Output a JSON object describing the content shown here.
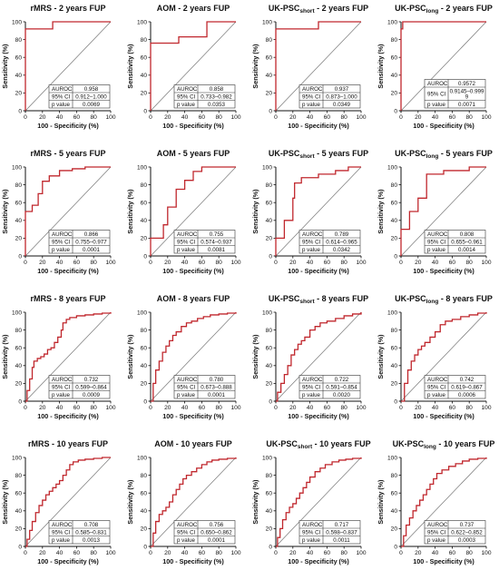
{
  "chart_data": [
    {
      "type": "line",
      "title": "rMRS - 2 years FUP",
      "xlabel": "100 - Specificity (%)",
      "ylabel": "Sensitivity (%)",
      "xlim": [
        0,
        100
      ],
      "ylim": [
        0,
        100
      ],
      "ticks": [
        "0",
        "20",
        "40",
        "60",
        "80",
        "100"
      ],
      "reference_line": true,
      "series": [
        {
          "x": [
            0,
            0,
            0,
            32,
            32,
            100,
            100
          ],
          "y": [
            0,
            60,
            92,
            92,
            100,
            100,
            100
          ]
        }
      ],
      "stats": {
        "labels": [
          "AUROC",
          "95% CI",
          "p value"
        ],
        "values": [
          "0.958",
          "0.912–1.000",
          "0.0069"
        ]
      }
    },
    {
      "type": "line",
      "title": "AOM - 2 years FUP",
      "xlabel": "100 - Specificity (%)",
      "ylabel": "Sensitivity (%)",
      "xlim": [
        0,
        100
      ],
      "ylim": [
        0,
        100
      ],
      "ticks": [
        "0",
        "20",
        "40",
        "60",
        "80",
        "100"
      ],
      "reference_line": true,
      "series": [
        {
          "x": [
            0,
            0,
            33,
            33,
            66,
            66,
            100
          ],
          "y": [
            0,
            76,
            76,
            83,
            83,
            100,
            100
          ]
        }
      ],
      "stats": {
        "labels": [
          "AUROC",
          "95% CI",
          "p value"
        ],
        "values": [
          "0.858",
          "0.733–0.982",
          "0.0353"
        ]
      }
    },
    {
      "type": "line",
      "title": "UK-PSCshort - 2 years FUP",
      "title_main": "UK-PSC",
      "title_sub": "short",
      "title_rest": " - 2 years FUP",
      "xlabel": "100 - Specificity (%)",
      "ylabel": "Sensitivity (%)",
      "xlim": [
        0,
        100
      ],
      "ylim": [
        0,
        100
      ],
      "ticks": [
        "0",
        "20",
        "40",
        "60",
        "80",
        "100"
      ],
      "reference_line": true,
      "series": [
        {
          "x": [
            0,
            0,
            0,
            0,
            50,
            50,
            100
          ],
          "y": [
            0,
            50,
            80,
            92,
            92,
            100,
            100
          ]
        }
      ],
      "stats": {
        "labels": [
          "AUROC",
          "95% CI",
          "p value"
        ],
        "values": [
          "0.937",
          "0.873–1.000",
          "0.0349"
        ]
      }
    },
    {
      "type": "line",
      "title": "UK-PSClong - 2 years FUP",
      "title_main": "UK-PSC",
      "title_sub": "long",
      "title_rest": " - 2 years FUP",
      "xlabel": "100 - Specificity (%)",
      "ylabel": "Sensitivity (%)",
      "xlim": [
        0,
        100
      ],
      "ylim": [
        0,
        100
      ],
      "ticks": [
        "0",
        "20",
        "40",
        "60",
        "80",
        "100"
      ],
      "reference_line": true,
      "series": [
        {
          "x": [
            0,
            0,
            0,
            0,
            2,
            2,
            100
          ],
          "y": [
            0,
            40,
            70,
            92,
            92,
            100,
            100
          ]
        }
      ],
      "stats": {
        "labels": [
          "AUROC",
          "95% CI",
          "p value"
        ],
        "values": [
          "0.9572",
          "0.9145–0.999",
          "0.0071"
        ],
        "ci_extra": "9"
      }
    },
    {
      "type": "line",
      "title": "rMRS - 5 years FUP",
      "xlabel": "100 - Specificity (%)",
      "ylabel": "Sensitivity (%)",
      "xlim": [
        0,
        100
      ],
      "ylim": [
        0,
        100
      ],
      "ticks": [
        "0",
        "20",
        "40",
        "60",
        "80",
        "100"
      ],
      "reference_line": true,
      "series": [
        {
          "x": [
            0,
            0,
            8,
            8,
            15,
            15,
            20,
            20,
            28,
            28,
            40,
            40,
            55,
            55,
            70,
            70,
            100
          ],
          "y": [
            0,
            50,
            50,
            57,
            57,
            70,
            70,
            84,
            84,
            90,
            90,
            96,
            96,
            98,
            98,
            100,
            100
          ]
        }
      ],
      "stats": {
        "labels": [
          "AUROC",
          "95% CI",
          "p value"
        ],
        "values": [
          "0.866",
          "0.755–0.977",
          "0.0001"
        ]
      }
    },
    {
      "type": "line",
      "title": "AOM - 5 years FUP",
      "xlabel": "100 - Specificity (%)",
      "ylabel": "Sensitivity (%)",
      "xlim": [
        0,
        100
      ],
      "ylim": [
        0,
        100
      ],
      "ticks": [
        "0",
        "20",
        "40",
        "60",
        "80",
        "100"
      ],
      "reference_line": true,
      "series": [
        {
          "x": [
            0,
            0,
            15,
            15,
            20,
            20,
            30,
            30,
            40,
            40,
            50,
            50,
            60,
            60,
            100
          ],
          "y": [
            0,
            20,
            20,
            35,
            35,
            55,
            55,
            75,
            75,
            85,
            85,
            95,
            95,
            100,
            100
          ]
        }
      ],
      "stats": {
        "labels": [
          "AUROC",
          "95% CI",
          "p value"
        ],
        "values": [
          "0.755",
          "0.574–0.937",
          "0.0081"
        ]
      }
    },
    {
      "type": "line",
      "title": "UK-PSCshort - 5 years FUP",
      "title_main": "UK-PSC",
      "title_sub": "short",
      "title_rest": " - 5 years FUP",
      "xlabel": "100 - Specificity (%)",
      "ylabel": "Sensitivity (%)",
      "xlim": [
        0,
        100
      ],
      "ylim": [
        0,
        100
      ],
      "ticks": [
        "0",
        "20",
        "40",
        "60",
        "80",
        "100"
      ],
      "reference_line": true,
      "series": [
        {
          "x": [
            0,
            0,
            10,
            10,
            20,
            20,
            22,
            22,
            30,
            30,
            50,
            50,
            70,
            70,
            85,
            85,
            100
          ],
          "y": [
            0,
            20,
            20,
            40,
            40,
            65,
            65,
            82,
            82,
            88,
            88,
            92,
            92,
            96,
            96,
            100,
            100
          ]
        }
      ],
      "stats": {
        "labels": [
          "AUROC",
          "95% CI",
          "p value"
        ],
        "values": [
          "0.789",
          "0.614–0.965",
          "0.0342"
        ]
      }
    },
    {
      "type": "line",
      "title": "UK-PSClong - 5 years FUP",
      "title_main": "UK-PSC",
      "title_sub": "long",
      "title_rest": " - 5 years FUP",
      "xlabel": "100 - Specificity (%)",
      "ylabel": "Sensitivity (%)",
      "xlim": [
        0,
        100
      ],
      "ylim": [
        0,
        100
      ],
      "ticks": [
        "0",
        "20",
        "40",
        "60",
        "80",
        "100"
      ],
      "reference_line": true,
      "series": [
        {
          "x": [
            0,
            0,
            10,
            10,
            20,
            20,
            30,
            30,
            50,
            50,
            80,
            80,
            100
          ],
          "y": [
            0,
            30,
            30,
            50,
            50,
            65,
            65,
            92,
            92,
            96,
            96,
            100,
            100
          ]
        }
      ],
      "stats": {
        "labels": [
          "AUROC",
          "95% CI",
          "p value"
        ],
        "values": [
          "0.808",
          "0.655–0.961",
          "0.0014"
        ]
      }
    },
    {
      "type": "line",
      "title": "rMRS - 8 years FUP",
      "xlabel": "100 - Specificity (%)",
      "ylabel": "Sensitivity (%)",
      "xlim": [
        0,
        100
      ],
      "ylim": [
        0,
        100
      ],
      "ticks": [
        "0",
        "20",
        "40",
        "60",
        "80",
        "100"
      ],
      "reference_line": true,
      "series": [
        {
          "x": [
            0,
            2,
            5,
            8,
            10,
            14,
            18,
            22,
            26,
            30,
            34,
            38,
            42,
            44,
            48,
            52,
            60,
            70,
            80,
            90,
            100
          ],
          "y": [
            0,
            12,
            25,
            38,
            45,
            48,
            50,
            53,
            58,
            60,
            66,
            72,
            80,
            88,
            92,
            94,
            96,
            97,
            98,
            99,
            100
          ]
        }
      ],
      "stats": {
        "labels": [
          "AUROC",
          "95% CI",
          "p value"
        ],
        "values": [
          "0.732",
          "0.599–0.864",
          "0.0009"
        ]
      }
    },
    {
      "type": "line",
      "title": "AOM - 8 years FUP",
      "xlabel": "100 - Specificity (%)",
      "ylabel": "Sensitivity (%)",
      "xlim": [
        0,
        100
      ],
      "ylim": [
        0,
        100
      ],
      "ticks": [
        "0",
        "20",
        "40",
        "60",
        "80",
        "100"
      ],
      "reference_line": true,
      "series": [
        {
          "x": [
            0,
            3,
            6,
            10,
            14,
            18,
            22,
            26,
            30,
            36,
            42,
            48,
            55,
            62,
            70,
            80,
            90,
            100
          ],
          "y": [
            0,
            20,
            35,
            45,
            55,
            62,
            68,
            74,
            78,
            84,
            88,
            90,
            93,
            95,
            97,
            98,
            99,
            100
          ]
        }
      ],
      "stats": {
        "labels": [
          "AUROC",
          "95% CI",
          "p value"
        ],
        "values": [
          "0.780",
          "0.673–0.888",
          "0.0001"
        ]
      }
    },
    {
      "type": "line",
      "title": "UK-PSCshort - 8 years FUP",
      "title_main": "UK-PSC",
      "title_sub": "short",
      "title_rest": " - 8 years FUP",
      "xlabel": "100 - Specificity (%)",
      "ylabel": "Sensitivity (%)",
      "xlim": [
        0,
        100
      ],
      "ylim": [
        0,
        100
      ],
      "ticks": [
        "0",
        "20",
        "40",
        "60",
        "80",
        "100"
      ],
      "reference_line": true,
      "series": [
        {
          "x": [
            0,
            2,
            6,
            10,
            14,
            18,
            22,
            26,
            30,
            34,
            40,
            46,
            52,
            60,
            70,
            80,
            90,
            100
          ],
          "y": [
            0,
            10,
            20,
            30,
            40,
            52,
            58,
            64,
            68,
            72,
            80,
            84,
            88,
            90,
            93,
            96,
            98,
            100
          ]
        }
      ],
      "stats": {
        "labels": [
          "AUROC",
          "95% CI",
          "p value"
        ],
        "values": [
          "0.722",
          "0.591–0.854",
          "0.0020"
        ]
      }
    },
    {
      "type": "line",
      "title": "UK-PSClong - 8 years FUP",
      "title_main": "UK-PSC",
      "title_sub": "long",
      "title_rest": " - 8 years FUP",
      "xlabel": "100 - Specificity (%)",
      "ylabel": "Sensitivity (%)",
      "xlim": [
        0,
        100
      ],
      "ylim": [
        0,
        100
      ],
      "ticks": [
        "0",
        "20",
        "40",
        "60",
        "80",
        "100"
      ],
      "reference_line": true,
      "series": [
        {
          "x": [
            0,
            4,
            8,
            12,
            16,
            20,
            24,
            28,
            34,
            40,
            46,
            52,
            60,
            70,
            80,
            90,
            100
          ],
          "y": [
            0,
            20,
            35,
            45,
            52,
            58,
            62,
            66,
            72,
            78,
            86,
            90,
            92,
            95,
            97,
            99,
            100
          ]
        }
      ],
      "stats": {
        "labels": [
          "AUROC",
          "95% CI",
          "p value"
        ],
        "values": [
          "0.742",
          "0.619–0.867",
          "0.0006"
        ]
      }
    },
    {
      "type": "line",
      "title": "rMRS - 10 years FUP",
      "xlabel": "100 - Specificity (%)",
      "ylabel": "Sensitivity (%)",
      "xlim": [
        0,
        100
      ],
      "ylim": [
        0,
        100
      ],
      "ticks": [
        "0",
        "20",
        "40",
        "60",
        "80",
        "100"
      ],
      "reference_line": true,
      "series": [
        {
          "x": [
            0,
            2,
            5,
            8,
            12,
            16,
            20,
            24,
            28,
            32,
            36,
            40,
            44,
            48,
            52,
            56,
            62,
            70,
            80,
            90,
            100
          ],
          "y": [
            0,
            8,
            18,
            28,
            38,
            46,
            52,
            58,
            62,
            66,
            70,
            74,
            80,
            86,
            92,
            95,
            97,
            98,
            99,
            100,
            100
          ]
        }
      ],
      "stats": {
        "labels": [
          "AUROC",
          "95% CI",
          "p value"
        ],
        "values": [
          "0.708",
          "0.585–0.831",
          "0.0013"
        ]
      }
    },
    {
      "type": "line",
      "title": "AOM - 10 years FUP",
      "xlabel": "100 - Specificity (%)",
      "ylabel": "Sensitivity (%)",
      "xlim": [
        0,
        100
      ],
      "ylim": [
        0,
        100
      ],
      "ticks": [
        "0",
        "20",
        "40",
        "60",
        "80",
        "100"
      ],
      "reference_line": true,
      "series": [
        {
          "x": [
            0,
            3,
            6,
            10,
            14,
            18,
            22,
            26,
            30,
            34,
            38,
            42,
            48,
            54,
            60,
            66,
            72,
            80,
            90,
            100
          ],
          "y": [
            0,
            15,
            28,
            36,
            40,
            44,
            50,
            58,
            64,
            70,
            76,
            80,
            84,
            88,
            92,
            95,
            97,
            98,
            99,
            100
          ]
        }
      ],
      "stats": {
        "labels": [
          "AUROC",
          "95% CI",
          "p value"
        ],
        "values": [
          "0.756",
          "0.650–0.862",
          "0.0001"
        ]
      }
    },
    {
      "type": "line",
      "title": "UK-PSCshort - 10 years FUP",
      "title_main": "UK-PSC",
      "title_sub": "short",
      "title_rest": " - 10 years FUP",
      "xlabel": "100 - Specificity (%)",
      "ylabel": "Sensitivity (%)",
      "xlim": [
        0,
        100
      ],
      "ylim": [
        0,
        100
      ],
      "ticks": [
        "0",
        "20",
        "40",
        "60",
        "80",
        "100"
      ],
      "reference_line": true,
      "series": [
        {
          "x": [
            0,
            2,
            5,
            8,
            12,
            16,
            20,
            24,
            28,
            32,
            36,
            40,
            46,
            52,
            58,
            66,
            74,
            82,
            90,
            100
          ],
          "y": [
            0,
            10,
            20,
            30,
            38,
            44,
            48,
            54,
            60,
            66,
            72,
            78,
            84,
            88,
            92,
            95,
            97,
            98,
            99,
            100
          ]
        }
      ],
      "stats": {
        "labels": [
          "AUROC",
          "95% CI",
          "p value"
        ],
        "values": [
          "0.717",
          "0.598–0.837",
          "0.0011"
        ]
      }
    },
    {
      "type": "line",
      "title": "UK-PSClong - 10 years FUP",
      "title_main": "UK-PSC",
      "title_sub": "long",
      "title_rest": " - 10 years FUP",
      "xlabel": "100 - Specificity (%)",
      "ylabel": "Sensitivity (%)",
      "xlim": [
        0,
        100
      ],
      "ylim": [
        0,
        100
      ],
      "ticks": [
        "0",
        "20",
        "40",
        "60",
        "80",
        "100"
      ],
      "reference_line": true,
      "series": [
        {
          "x": [
            0,
            3,
            6,
            10,
            14,
            18,
            22,
            26,
            30,
            34,
            38,
            42,
            48,
            56,
            64,
            72,
            80,
            90,
            100
          ],
          "y": [
            0,
            12,
            24,
            32,
            40,
            46,
            52,
            58,
            64,
            70,
            76,
            82,
            86,
            90,
            93,
            96,
            98,
            99,
            100
          ]
        }
      ],
      "stats": {
        "labels": [
          "AUROC",
          "95% CI",
          "p value"
        ],
        "values": [
          "0.737",
          "0.622–0.852",
          "0.0003"
        ]
      }
    }
  ]
}
